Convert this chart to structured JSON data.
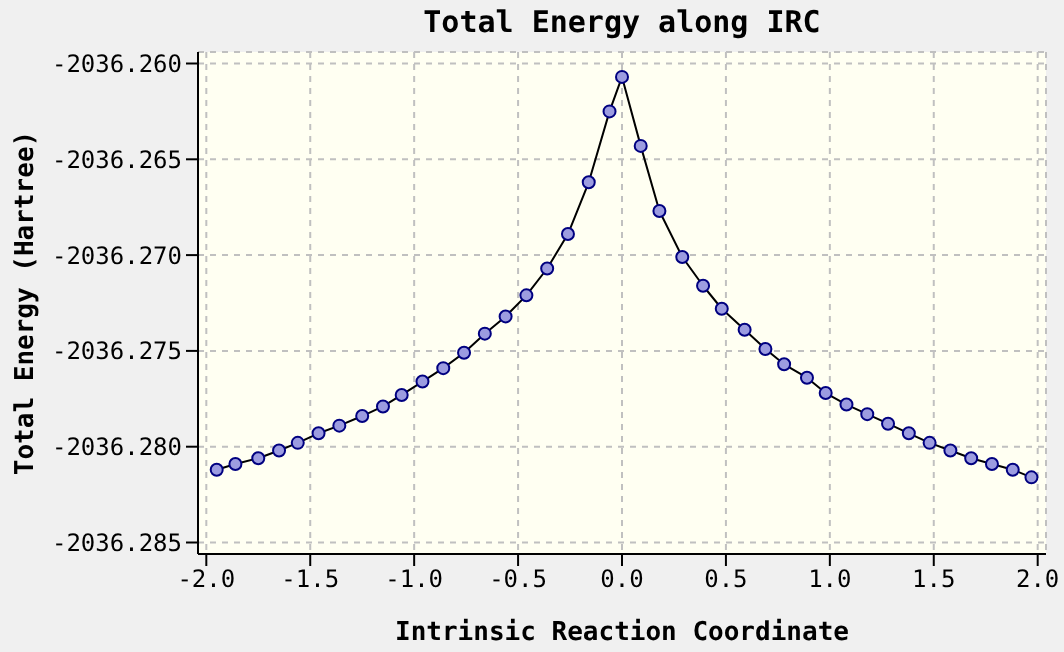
{
  "chart_data": {
    "type": "line",
    "title": "Total Energy along IRC",
    "xlabel": "Intrinsic Reaction Coordinate",
    "ylabel": "Total Energy (Hartree)",
    "series": [
      {
        "color": "#000080",
        "x": [
          -1.95,
          -1.86,
          -1.75,
          -1.65,
          -1.56,
          -1.46,
          -1.36,
          -1.25,
          -1.15,
          -1.06,
          -0.96,
          -0.86,
          -0.76,
          -0.66,
          -0.56,
          -0.46,
          -0.36,
          -0.26,
          -0.16,
          -0.06,
          0.0,
          0.09,
          0.18,
          0.29,
          0.39,
          0.48,
          0.59,
          0.69,
          0.78,
          0.89,
          0.98,
          1.08,
          1.18,
          1.28,
          1.38,
          1.48,
          1.58,
          1.68,
          1.78,
          1.88,
          1.97
        ],
        "values": [
          -2036.2812,
          -2036.2809,
          -2036.2806,
          -2036.2802,
          -2036.2798,
          -2036.2793,
          -2036.2789,
          -2036.2784,
          -2036.2779,
          -2036.2773,
          -2036.2766,
          -2036.2759,
          -2036.2751,
          -2036.2741,
          -2036.2732,
          -2036.2721,
          -2036.2707,
          -2036.2689,
          -2036.2662,
          -2036.2625,
          -2036.2607,
          -2036.2643,
          -2036.2677,
          -2036.2701,
          -2036.2716,
          -2036.2728,
          -2036.2739,
          -2036.2749,
          -2036.2757,
          -2036.2764,
          -2036.2772,
          -2036.2778,
          -2036.2783,
          -2036.2788,
          -2036.2793,
          -2036.2798,
          -2036.2802,
          -2036.2806,
          -2036.2809,
          -2036.2812,
          -2036.2816
        ]
      }
    ],
    "xlim": [
      -2.04,
      2.04
    ],
    "xticks": [
      {
        "value": -2,
        "label": "-2.0"
      },
      {
        "value": -1.5,
        "label": "-1.5"
      },
      {
        "value": -1,
        "label": "-1.0"
      },
      {
        "value": -0.5,
        "label": "-0.5"
      },
      {
        "value": 0,
        "label": "0.0"
      },
      {
        "value": 0.5,
        "label": "0.5"
      },
      {
        "value": 1,
        "label": "1.0"
      },
      {
        "value": 1.5,
        "label": "1.5"
      },
      {
        "value": 2,
        "label": "2.0"
      }
    ],
    "ylim": [
      -2036.2856,
      -2036.2594
    ],
    "yticks": [
      {
        "value": -2036.285,
        "label": "-2036.285"
      },
      {
        "value": -2036.28,
        "label": "-2036.280"
      },
      {
        "value": -2036.275,
        "label": "-2036.275"
      },
      {
        "value": -2036.27,
        "label": "-2036.270"
      },
      {
        "value": -2036.265,
        "label": "-2036.265"
      },
      {
        "value": -2036.26,
        "label": "-2036.260"
      }
    ],
    "grid": true,
    "legend": false,
    "marker": "circle",
    "line_style": "solid"
  }
}
